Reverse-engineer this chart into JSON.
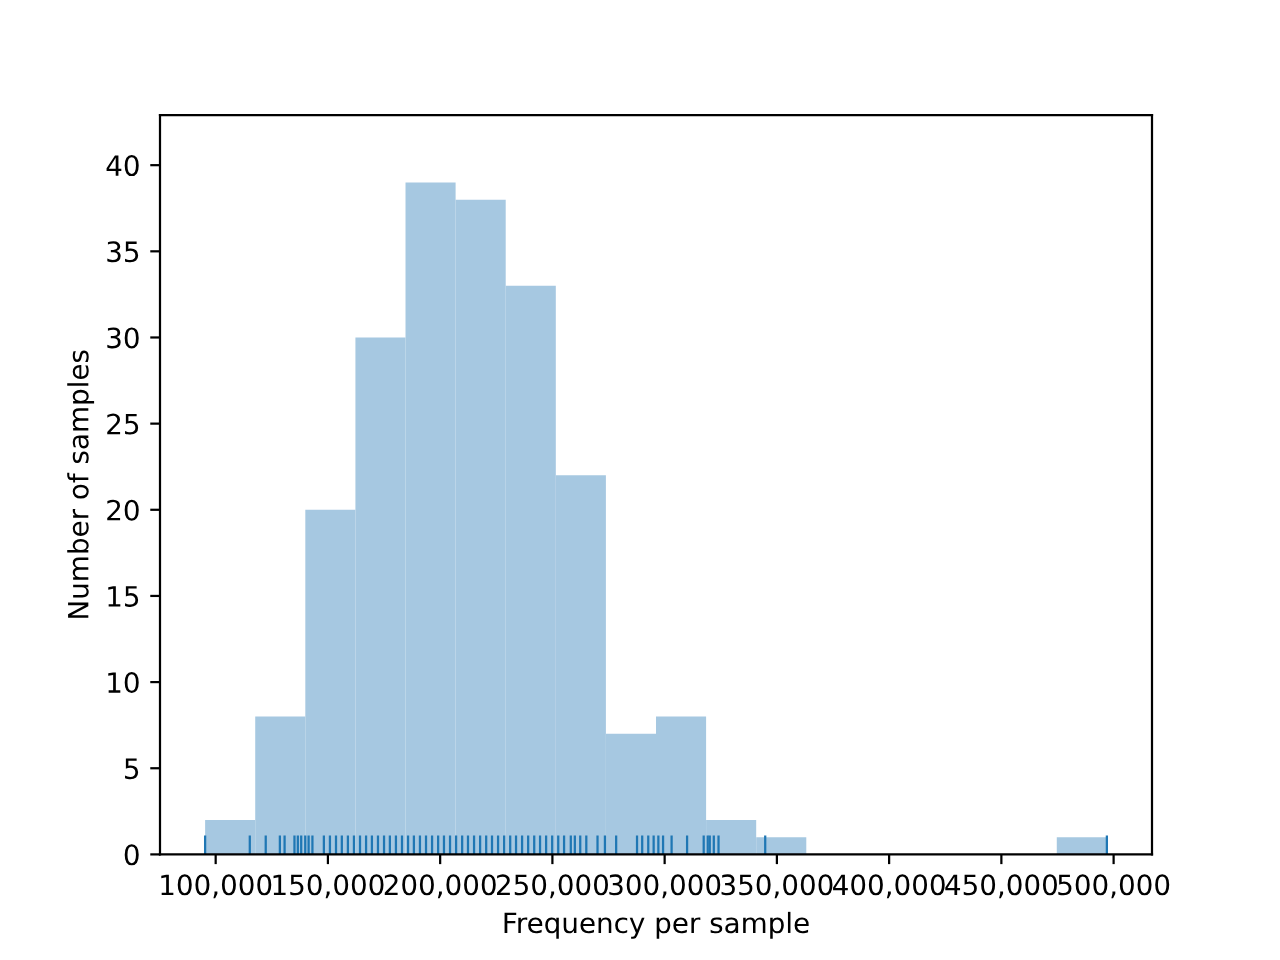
{
  "chart_data": {
    "type": "histogram",
    "xlabel": "Frequency per sample",
    "ylabel": "Number of samples",
    "bins": [
      95300,
      117617,
      139933,
      162250,
      184567,
      206883,
      229200,
      251517,
      273833,
      296150,
      318467,
      340783,
      363100,
      385417,
      407733,
      430050,
      452367,
      474683,
      497000
    ],
    "values": [
      2,
      8,
      20,
      30,
      39,
      38,
      33,
      22,
      7,
      8,
      2,
      1,
      0,
      0,
      0,
      0,
      0,
      1
    ],
    "color": "#a6c8e1",
    "series": [
      {
        "type": "bar",
        "color": "#1f77b4",
        "values": [
          1.1,
          1.1,
          1.1,
          1.1,
          1.1,
          1.1,
          1.1,
          1.1,
          1.1,
          1.1,
          1.1,
          1.1,
          1.1,
          1.1,
          1.1,
          1.1,
          1.1,
          1.1,
          1.1,
          1.1,
          1.1,
          1.1,
          1.1,
          1.1,
          1.1,
          1.1,
          1.1,
          1.1,
          1.1,
          1.1,
          1.1,
          1.1,
          1.1,
          1.1,
          1.1,
          1.1,
          1.1,
          1.1,
          1.1,
          1.1,
          1.1,
          1.1,
          1.1,
          1.1,
          1.1,
          1.1,
          1.1,
          1.1,
          1.1,
          1.1,
          1.1,
          1.1,
          1.1,
          1.1,
          1.1,
          1.1,
          1.1,
          1.1,
          1.1,
          1.1,
          1.1,
          1.1,
          1.1,
          1.1,
          1.1,
          1.1,
          1.1,
          1.1,
          1.1,
          1.1,
          1.1,
          1.1,
          1.1,
          1.1
        ],
        "x": [
          95300,
          115200,
          122300,
          128600,
          130700,
          135100,
          136600,
          138100,
          139900,
          141400,
          143100,
          148200,
          150900,
          153600,
          156200,
          158900,
          161600,
          164300,
          167000,
          169600,
          172300,
          175000,
          177600,
          180300,
          183000,
          185700,
          188300,
          191000,
          193700,
          196400,
          199100,
          201700,
          204400,
          207100,
          209800,
          212400,
          215100,
          217800,
          220500,
          223100,
          225800,
          228500,
          231200,
          233800,
          236500,
          239200,
          241900,
          244500,
          247200,
          249900,
          252600,
          255200,
          258200,
          260000,
          262400,
          265100,
          270100,
          273400,
          278400,
          287700,
          290000,
          292700,
          295100,
          297200,
          299300,
          303100,
          310000,
          317400,
          319200,
          320100,
          321900,
          324000,
          344800,
          497000
        ]
      }
    ],
    "xlim": [
      75200,
      517100
    ],
    "ylim": [
      0,
      42.9
    ],
    "xticks": [
      {
        "value": 100000,
        "label": "100,000"
      },
      {
        "value": 150000,
        "label": "150,000"
      },
      {
        "value": 200000,
        "label": "200,000"
      },
      {
        "value": 250000,
        "label": "250,000"
      },
      {
        "value": 300000,
        "label": "300,000"
      },
      {
        "value": 350000,
        "label": "350,000"
      },
      {
        "value": 400000,
        "label": "400,000"
      },
      {
        "value": 450000,
        "label": "450,000"
      },
      {
        "value": 500000,
        "label": "500,000"
      }
    ],
    "yticks": [
      0,
      5,
      10,
      15,
      20,
      25,
      30,
      35,
      40
    ],
    "grid": false
  }
}
